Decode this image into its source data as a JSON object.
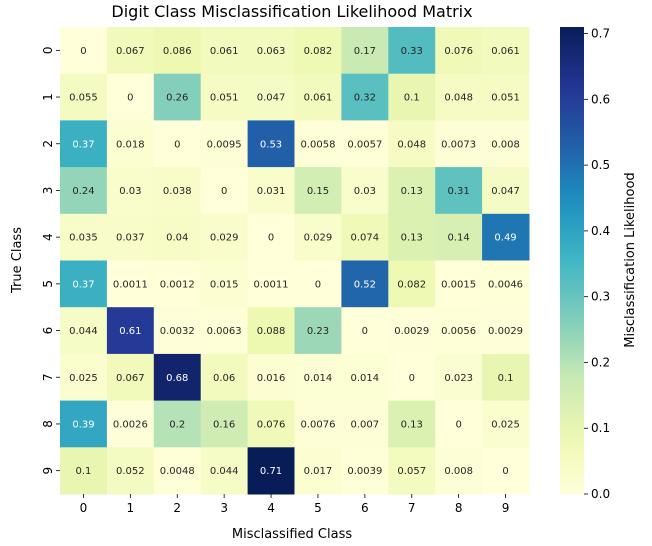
{
  "chart_data": {
    "type": "heatmap",
    "title": "Digit Class Misclassification Likelihood Matrix",
    "xlabel": "Misclassified Class",
    "ylabel": "True Class",
    "x_categories": [
      "0",
      "1",
      "2",
      "3",
      "4",
      "5",
      "6",
      "7",
      "8",
      "9"
    ],
    "y_categories": [
      "0",
      "1",
      "2",
      "3",
      "4",
      "5",
      "6",
      "7",
      "8",
      "9"
    ],
    "values": [
      [
        0,
        0.067,
        0.086,
        0.061,
        0.063,
        0.082,
        0.17,
        0.33,
        0.076,
        0.061
      ],
      [
        0.055,
        0,
        0.26,
        0.051,
        0.047,
        0.061,
        0.32,
        0.1,
        0.048,
        0.051
      ],
      [
        0.37,
        0.018,
        0,
        0.0095,
        0.53,
        0.0058,
        0.0057,
        0.048,
        0.0073,
        0.008
      ],
      [
        0.24,
        0.03,
        0.038,
        0,
        0.031,
        0.15,
        0.03,
        0.13,
        0.31,
        0.047
      ],
      [
        0.035,
        0.037,
        0.04,
        0.029,
        0,
        0.029,
        0.074,
        0.13,
        0.14,
        0.49
      ],
      [
        0.37,
        0.0011,
        0.0012,
        0.015,
        0.0011,
        0,
        0.52,
        0.082,
        0.0015,
        0.0046
      ],
      [
        0.044,
        0.61,
        0.0032,
        0.0063,
        0.088,
        0.23,
        0,
        0.0029,
        0.0056,
        0.0029
      ],
      [
        0.025,
        0.067,
        0.68,
        0.06,
        0.016,
        0.014,
        0.014,
        0,
        0.023,
        0.1
      ],
      [
        0.39,
        0.0026,
        0.2,
        0.16,
        0.076,
        0.0076,
        0.007,
        0.13,
        0,
        0.025
      ],
      [
        0.1,
        0.052,
        0.0048,
        0.044,
        0.71,
        0.017,
        0.0039,
        0.057,
        0.008,
        0
      ]
    ],
    "colorbar": {
      "label": "Misclassification Likelihood",
      "range": [
        0,
        0.71
      ],
      "ticks": [
        "0.0",
        "0.1",
        "0.2",
        "0.3",
        "0.4",
        "0.5",
        "0.6",
        "0.7"
      ],
      "colormap": "YlGnBu"
    },
    "annotated": true,
    "grid": false
  }
}
